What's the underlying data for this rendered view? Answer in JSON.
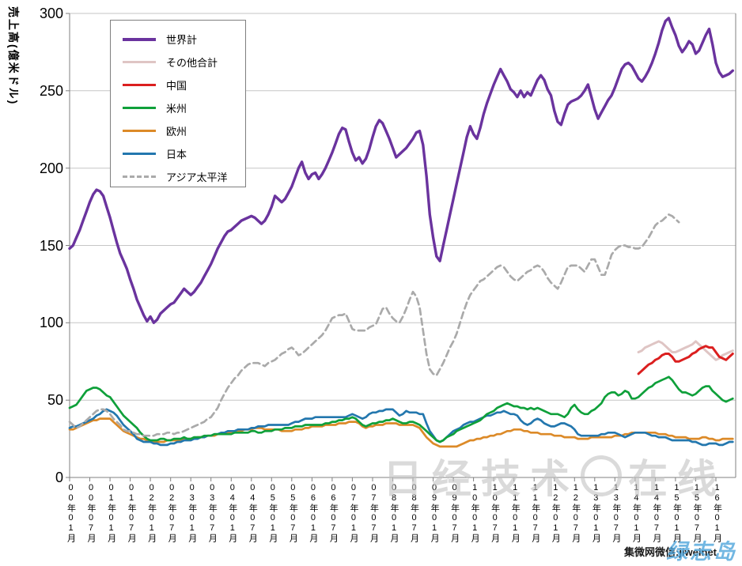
{
  "watermarks": {
    "center_left": "日经技术",
    "center_right": "在线",
    "corner_black": "集微网微信:jiweinet",
    "corner_blue": "绿志岛"
  },
  "legend": {
    "items": [
      {
        "label": "世界計",
        "color": "#6a339e",
        "dashed": false,
        "width": 4
      },
      {
        "label": "その他合計",
        "color": "#dfc5c4",
        "dashed": false,
        "width": 3
      },
      {
        "label": "中国",
        "color": "#db1f1f",
        "dashed": false,
        "width": 3
      },
      {
        "label": "米州",
        "color": "#0fa03a",
        "dashed": false,
        "width": 3
      },
      {
        "label": "欧州",
        "color": "#dc8a28",
        "dashed": false,
        "width": 3
      },
      {
        "label": "日本",
        "color": "#2377ae",
        "dashed": false,
        "width": 3
      },
      {
        "label": "アジア太平洋",
        "color": "#aaaaaa",
        "dashed": true,
        "width": 3
      }
    ]
  },
  "chart_data": {
    "type": "line",
    "title": "",
    "xlabel": "",
    "ylabel": "売上高(億米ドル)",
    "ylim": [
      0,
      300
    ],
    "y_ticks": [
      0,
      50,
      100,
      150,
      200,
      250,
      300
    ],
    "grid": true,
    "legend_position": "upper-left",
    "x_start": "2000-01",
    "x_interval": "month",
    "x_tick_every_months": 6,
    "x_tick_labels": [
      "00年01月",
      "00年07月",
      "01年01月",
      "01年07月",
      "02年01月",
      "02年07月",
      "03年01月",
      "03年07月",
      "04年01月",
      "04年07月",
      "05年01月",
      "05年07月",
      "06年01月",
      "06年07月",
      "07年01月",
      "07年07月",
      "08年01月",
      "08年07月",
      "09年01月",
      "09年07月",
      "10年01月",
      "10年07月",
      "11年01月",
      "11年07月",
      "12年01月",
      "12年07月",
      "13年01月",
      "13年07月",
      "14年01月",
      "14年07月",
      "15年01月",
      "15年07月",
      "16年01月"
    ],
    "series": [
      {
        "name": "その他合計",
        "color": "#dfc5c4",
        "dashed": false,
        "width": 3,
        "start_index": 169,
        "values": [
          81,
          82,
          84,
          85,
          86,
          87,
          88,
          87,
          85,
          83,
          81,
          81,
          82,
          83,
          84,
          85,
          86,
          88,
          86,
          84,
          82,
          80,
          78,
          76,
          77,
          79,
          80,
          81,
          82
        ]
      },
      {
        "name": "欧州",
        "color": "#dc8a28",
        "dashed": false,
        "width": 2.7,
        "start_index": 0,
        "values": [
          31,
          31,
          32,
          33,
          34,
          35,
          36,
          37,
          37,
          38,
          38,
          38,
          38,
          36,
          34,
          32,
          30,
          29,
          28,
          27,
          26,
          25,
          25,
          24,
          23,
          23,
          23,
          23,
          23,
          24,
          24,
          24,
          24,
          24,
          25,
          25,
          25,
          25,
          26,
          26,
          26,
          27,
          27,
          27,
          28,
          28,
          28,
          29,
          29,
          29,
          30,
          30,
          31,
          31,
          31,
          32,
          32,
          32,
          31,
          31,
          31,
          31,
          31,
          30,
          30,
          30,
          30,
          31,
          31,
          31,
          32,
          32,
          33,
          33,
          33,
          33,
          34,
          34,
          34,
          34,
          35,
          35,
          35,
          36,
          36,
          36,
          35,
          33,
          32,
          33,
          33,
          34,
          34,
          34,
          35,
          35,
          35,
          35,
          34,
          34,
          34,
          34,
          34,
          33,
          32,
          29,
          26,
          24,
          22,
          21,
          20,
          20,
          20,
          20,
          20,
          20,
          21,
          22,
          23,
          24,
          24,
          25,
          25,
          26,
          26,
          27,
          27,
          28,
          28,
          29,
          30,
          30,
          31,
          31,
          31,
          30,
          30,
          29,
          29,
          29,
          28,
          28,
          28,
          28,
          27,
          27,
          27,
          26,
          26,
          26,
          26,
          25,
          25,
          25,
          25,
          26,
          26,
          26,
          26,
          26,
          26,
          26,
          27,
          27,
          27,
          28,
          28,
          29,
          29,
          29,
          29,
          29,
          29,
          29,
          29,
          28,
          28,
          28,
          27,
          27,
          26,
          26,
          26,
          26,
          25,
          25,
          25,
          25,
          26,
          26,
          25,
          25,
          24,
          24,
          25,
          25,
          25,
          25
        ]
      },
      {
        "name": "日本",
        "color": "#2377ae",
        "dashed": false,
        "width": 2.7,
        "start_index": 0,
        "values": [
          32,
          33,
          33,
          34,
          35,
          36,
          37,
          38,
          40,
          41,
          43,
          44,
          43,
          42,
          40,
          37,
          34,
          32,
          30,
          28,
          25,
          24,
          23,
          23,
          23,
          22,
          22,
          21,
          21,
          21,
          22,
          22,
          23,
          23,
          24,
          24,
          24,
          25,
          25,
          26,
          26,
          27,
          27,
          28,
          28,
          29,
          29,
          30,
          30,
          30,
          31,
          31,
          31,
          31,
          32,
          32,
          33,
          33,
          33,
          34,
          34,
          34,
          34,
          34,
          34,
          34,
          35,
          36,
          36,
          37,
          38,
          38,
          38,
          39,
          39,
          39,
          39,
          39,
          39,
          39,
          39,
          39,
          39,
          40,
          41,
          40,
          39,
          38,
          39,
          41,
          42,
          42,
          43,
          43,
          44,
          44,
          44,
          42,
          40,
          41,
          43,
          42,
          42,
          42,
          41,
          41,
          35,
          30,
          27,
          24,
          23,
          24,
          26,
          28,
          30,
          31,
          32,
          34,
          35,
          36,
          36,
          37,
          38,
          39,
          40,
          40,
          41,
          42,
          42,
          43,
          42,
          41,
          41,
          40,
          37,
          35,
          34,
          35,
          37,
          38,
          37,
          35,
          34,
          33,
          33,
          34,
          35,
          35,
          34,
          33,
          31,
          28,
          27,
          27,
          27,
          27,
          27,
          27,
          28,
          28,
          29,
          29,
          29,
          28,
          27,
          26,
          27,
          28,
          29,
          29,
          29,
          29,
          28,
          27,
          27,
          26,
          26,
          26,
          25,
          24,
          24,
          24,
          24,
          24,
          24,
          23,
          23,
          22,
          21,
          21,
          22,
          22,
          22,
          21,
          21,
          22,
          23,
          23
        ]
      },
      {
        "name": "米州",
        "color": "#0fa03a",
        "dashed": false,
        "width": 2.7,
        "start_index": 0,
        "values": [
          45,
          46,
          47,
          50,
          53,
          56,
          57,
          58,
          58,
          57,
          55,
          53,
          52,
          49,
          46,
          43,
          40,
          38,
          36,
          34,
          32,
          29,
          27,
          25,
          24,
          24,
          24,
          25,
          25,
          24,
          24,
          25,
          25,
          25,
          26,
          25,
          25,
          26,
          26,
          26,
          27,
          27,
          27,
          28,
          28,
          28,
          28,
          28,
          28,
          29,
          29,
          29,
          29,
          29,
          30,
          30,
          29,
          29,
          30,
          30,
          30,
          31,
          31,
          31,
          32,
          32,
          32,
          33,
          33,
          33,
          34,
          34,
          34,
          34,
          34,
          34,
          35,
          35,
          36,
          36,
          37,
          37,
          38,
          38,
          39,
          38,
          36,
          34,
          33,
          34,
          35,
          35,
          36,
          36,
          37,
          37,
          38,
          37,
          36,
          35,
          35,
          36,
          36,
          35,
          34,
          32,
          30,
          28,
          26,
          24,
          23,
          24,
          26,
          27,
          28,
          30,
          31,
          32,
          33,
          34,
          35,
          36,
          37,
          39,
          41,
          42,
          43,
          45,
          46,
          47,
          48,
          47,
          46,
          46,
          45,
          45,
          44,
          45,
          44,
          45,
          44,
          43,
          42,
          41,
          41,
          41,
          40,
          39,
          41,
          45,
          47,
          44,
          42,
          41,
          41,
          43,
          44,
          46,
          48,
          52,
          54,
          55,
          55,
          53,
          54,
          56,
          55,
          51,
          51,
          52,
          54,
          56,
          58,
          59,
          61,
          62,
          63,
          64,
          65,
          63,
          60,
          57,
          55,
          55,
          54,
          53,
          54,
          56,
          58,
          59,
          59,
          56,
          54,
          52,
          50,
          49,
          50,
          51
        ]
      },
      {
        "name": "アジア太平洋",
        "color": "#aaaaaa",
        "dashed": true,
        "width": 2.7,
        "start_index": 0,
        "values": [
          36,
          34,
          32,
          33,
          35,
          37,
          39,
          41,
          43,
          44,
          44,
          43,
          41,
          38,
          36,
          34,
          31,
          30,
          30,
          29,
          28,
          28,
          27,
          27,
          27,
          27,
          28,
          28,
          28,
          29,
          29,
          28,
          29,
          29,
          30,
          31,
          32,
          33,
          34,
          35,
          36,
          38,
          39,
          42,
          45,
          50,
          54,
          58,
          61,
          64,
          66,
          69,
          71,
          73,
          74,
          74,
          74,
          73,
          72,
          74,
          75,
          76,
          78,
          80,
          81,
          83,
          84,
          82,
          79,
          80,
          82,
          84,
          86,
          88,
          90,
          92,
          95,
          99,
          103,
          104,
          105,
          105,
          106,
          101,
          96,
          95,
          95,
          95,
          95,
          97,
          98,
          99,
          104,
          109,
          110,
          106,
          103,
          101,
          100,
          104,
          109,
          115,
          120,
          117,
          110,
          95,
          80,
          70,
          67,
          66,
          70,
          74,
          79,
          84,
          88,
          93,
          100,
          107,
          113,
          118,
          121,
          124,
          127,
          128,
          130,
          132,
          134,
          136,
          137,
          136,
          133,
          130,
          128,
          127,
          129,
          131,
          133,
          134,
          136,
          137,
          136,
          133,
          129,
          126,
          124,
          122,
          126,
          131,
          136,
          137,
          137,
          137,
          135,
          133,
          137,
          141,
          141,
          136,
          131,
          131,
          137,
          144,
          147,
          149,
          150,
          150,
          149,
          149,
          148,
          148,
          149,
          152,
          155,
          159,
          163,
          165,
          166,
          168,
          170,
          169,
          167,
          165
        ]
      },
      {
        "name": "中国",
        "color": "#db1f1f",
        "dashed": false,
        "width": 3,
        "start_index": 169,
        "values": [
          67,
          69,
          71,
          73,
          74,
          76,
          77,
          79,
          80,
          80,
          78,
          75,
          75,
          76,
          77,
          78,
          80,
          81,
          83,
          84,
          85,
          84,
          84,
          81,
          78,
          77,
          76,
          78,
          80
        ]
      },
      {
        "name": "世界計",
        "color": "#6a339e",
        "dashed": false,
        "width": 3.4,
        "start_index": 0,
        "values": [
          148,
          150,
          155,
          160,
          166,
          172,
          178,
          183,
          186,
          185,
          182,
          175,
          168,
          160,
          152,
          145,
          140,
          135,
          128,
          122,
          115,
          110,
          105,
          101,
          104,
          100,
          102,
          106,
          108,
          110,
          112,
          113,
          116,
          119,
          122,
          120,
          118,
          120,
          123,
          126,
          130,
          134,
          138,
          143,
          148,
          152,
          156,
          159,
          160,
          162,
          164,
          166,
          167,
          168,
          169,
          168,
          166,
          164,
          166,
          170,
          175,
          182,
          180,
          178,
          180,
          184,
          188,
          194,
          200,
          204,
          197,
          193,
          196,
          197,
          193,
          196,
          200,
          205,
          210,
          216,
          222,
          226,
          225,
          217,
          210,
          205,
          207,
          203,
          206,
          212,
          220,
          227,
          231,
          229,
          224,
          219,
          213,
          207,
          209,
          211,
          213,
          216,
          219,
          223,
          224,
          215,
          195,
          170,
          155,
          143,
          140,
          150,
          160,
          170,
          180,
          190,
          200,
          210,
          220,
          227,
          222,
          219,
          226,
          235,
          242,
          248,
          254,
          259,
          264,
          260,
          256,
          251,
          249,
          246,
          250,
          246,
          249,
          247,
          252,
          257,
          260,
          257,
          251,
          247,
          237,
          230,
          228,
          235,
          241,
          243,
          244,
          245,
          247,
          250,
          254,
          246,
          238,
          232,
          236,
          240,
          244,
          247,
          252,
          258,
          264,
          267,
          268,
          266,
          262,
          258,
          256,
          259,
          263,
          268,
          274,
          281,
          289,
          295,
          297,
          291,
          286,
          279,
          275,
          278,
          282,
          280,
          274,
          276,
          281,
          286,
          290,
          280,
          268,
          262,
          259,
          260,
          261,
          263
        ]
      }
    ]
  }
}
